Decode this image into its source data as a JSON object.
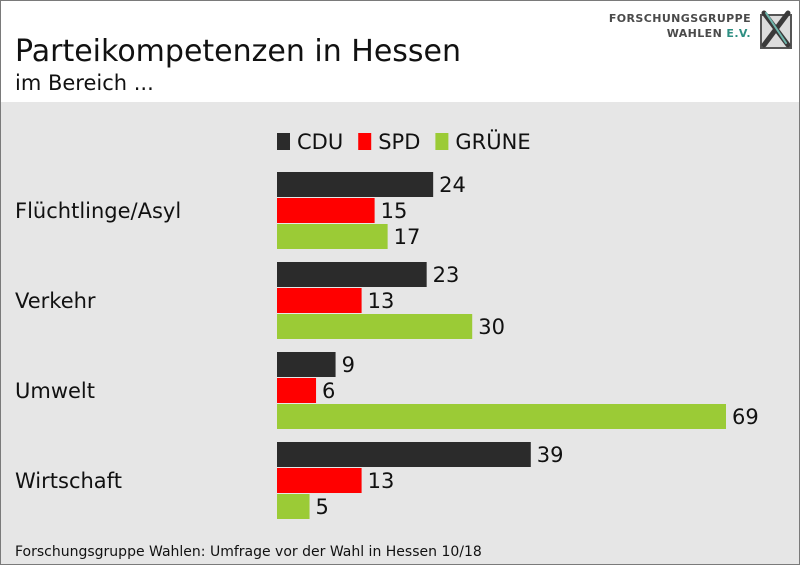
{
  "header": {
    "title": "Parteikompetenzen in Hessen",
    "subtitle": "im Bereich ...",
    "logo_line1": "FORSCHUNGSGRUPPE",
    "logo_line2": "WAHLEN",
    "logo_line2_suffix": "E.V."
  },
  "footer": {
    "source": "Forschungsgruppe Wahlen: Umfrage vor der Wahl in Hessen 10/18"
  },
  "colors": {
    "CDU": "#2b2b2b",
    "SPD": "#ff0000",
    "GRÜNE": "#9bcb36",
    "background": "#e6e6e6"
  },
  "chart_data": {
    "type": "bar",
    "orientation": "horizontal",
    "categories": [
      "Flüchtlinge/Asyl",
      "Verkehr",
      "Umwelt",
      "Wirtschaft"
    ],
    "series": [
      {
        "name": "CDU",
        "values": [
          24,
          23,
          9,
          39
        ]
      },
      {
        "name": "SPD",
        "values": [
          15,
          13,
          6,
          13
        ]
      },
      {
        "name": "GRÜNE",
        "values": [
          17,
          30,
          69,
          5
        ]
      }
    ],
    "data_labels": true,
    "legend_position": "top",
    "grid": false,
    "xlim": [
      0,
      69
    ]
  }
}
